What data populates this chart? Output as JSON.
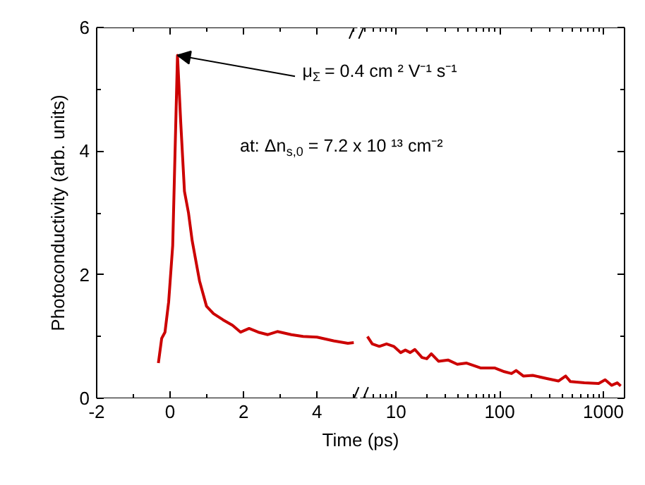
{
  "chart_data": [
    {
      "type": "line",
      "xlabel": "Time (ps)",
      "ylabel": "Photoconductivity (arb. units)",
      "xlim": [
        -2,
        5.1
      ],
      "xticks": [
        -2,
        {
          "value": -1,
          "label": null
        },
        0,
        {
          "value": 1,
          "label": null
        },
        2,
        {
          "value": 3,
          "label": null
        },
        4,
        {
          "value": 5,
          "label": null
        }
      ],
      "ylim": [
        0,
        6
      ],
      "yticks": [
        0,
        {
          "value": 1,
          "label": null
        },
        2,
        {
          "value": 3,
          "label": null
        },
        4,
        {
          "value": 5,
          "label": null
        },
        6
      ],
      "x": [
        -0.32,
        -0.23,
        -0.14,
        -0.04,
        0.07,
        0.2,
        0.29,
        0.39,
        0.5,
        0.6,
        0.8,
        0.99,
        1.18,
        1.44,
        1.7,
        1.92,
        2.15,
        2.4,
        2.66,
        2.92,
        3.3,
        3.62,
        4.0,
        4.45,
        4.84,
        5.0
      ],
      "series": [
        {
          "color": "#cc0000",
          "values": [
            0.57,
            0.97,
            1.07,
            1.56,
            2.47,
            5.55,
            4.45,
            3.35,
            3.0,
            2.55,
            1.9,
            1.49,
            1.37,
            1.27,
            1.18,
            1.07,
            1.13,
            1.07,
            1.03,
            1.08,
            1.03,
            1.0,
            0.99,
            0.93,
            0.89,
            0.9
          ]
        }
      ],
      "annotations": [
        {
          "text": "μ$_{Σ}$ = 0.4 cm ² V⁻¹ s⁻¹",
          "x": 0.2,
          "y": 5.55
        },
        "at: Δn$_{s,0}$ = 7.2 x 10 ¹³ cm⁻²"
      ]
    },
    {
      "type": "line",
      "log": "x",
      "tick_labels": "x",
      "xlim": [
        4.5,
        1600
      ],
      "xticks": [
        {
          "value": 5,
          "label": null
        },
        {
          "value": 6,
          "label": null
        },
        {
          "value": 7,
          "label": null
        },
        {
          "value": 8,
          "label": null
        },
        {
          "value": 9,
          "label": null
        },
        10,
        {
          "value": 20,
          "label": null
        },
        {
          "value": 30,
          "label": null
        },
        {
          "value": 40,
          "label": null
        },
        {
          "value": 50,
          "label": null
        },
        {
          "value": 60,
          "label": null
        },
        {
          "value": 70,
          "label": null
        },
        {
          "value": 80,
          "label": null
        },
        {
          "value": 90,
          "label": null
        },
        100,
        {
          "value": 200,
          "label": null
        },
        {
          "value": 300,
          "label": null
        },
        {
          "value": 400,
          "label": null
        },
        {
          "value": 500,
          "label": null
        },
        {
          "value": 600,
          "label": null
        },
        {
          "value": 700,
          "label": null
        },
        {
          "value": 800,
          "label": null
        },
        {
          "value": 900,
          "label": null
        },
        1000
      ],
      "ylim": [
        0,
        6
      ],
      "yticks": [
        0,
        {
          "value": 1,
          "label": null
        },
        2,
        {
          "value": 3,
          "label": null
        },
        4,
        {
          "value": 5,
          "label": null
        },
        6
      ],
      "x": [
        5.3,
        5.9,
        6.9,
        8.1,
        9.5,
        11.1,
        12.3,
        13.7,
        15.2,
        17.8,
        19.8,
        21.9,
        25.7,
        31.7,
        39,
        48,
        66,
        90,
        111,
        130,
        144,
        169,
        208,
        285,
        370,
        433,
        481,
        655,
        900,
        1040,
        1200,
        1360,
        1470
      ],
      "series": [
        {
          "color": "#cc0000",
          "values": [
            1.0,
            0.88,
            0.84,
            0.88,
            0.84,
            0.74,
            0.78,
            0.74,
            0.79,
            0.66,
            0.64,
            0.72,
            0.6,
            0.62,
            0.55,
            0.57,
            0.49,
            0.49,
            0.43,
            0.4,
            0.45,
            0.36,
            0.37,
            0.32,
            0.28,
            0.36,
            0.27,
            0.25,
            0.24,
            0.3,
            0.21,
            0.25,
            0.2
          ]
        }
      ]
    }
  ]
}
